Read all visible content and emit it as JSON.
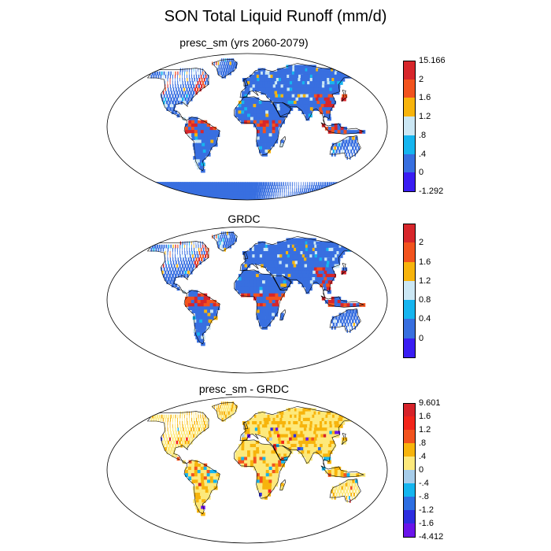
{
  "title": "SON Total Liquid Runoff (mm/d)",
  "colors": {
    "ocean": "#ffffff",
    "outline": "#000000"
  },
  "panels": [
    {
      "title": "presc_sm (yrs 2060-2079)",
      "colorbar": {
        "labels": [
          "15.166",
          "2",
          "1.6",
          "1.2",
          ".8",
          ".4",
          "0",
          "-1.292"
        ],
        "colors": [
          "#d7262b",
          "#f2531e",
          "#f7b40c",
          "#cbe7f4",
          "#16b5ef",
          "#386fe0",
          "#3a1df3"
        ]
      }
    },
    {
      "title": "GRDC",
      "colorbar": {
        "labels": [
          "",
          "2",
          "1.6",
          "1.2",
          "0.8",
          "0.4",
          "0",
          ""
        ],
        "colors": [
          "#d7262b",
          "#f2531e",
          "#f7b40c",
          "#cbe7f4",
          "#16b5ef",
          "#386fe0",
          "#3a1df3"
        ]
      }
    },
    {
      "title": "presc_sm - GRDC",
      "colorbar": {
        "labels": [
          "9.601",
          "1.6",
          "1.2",
          ".8",
          ".4",
          "0",
          "-.4",
          "-.8",
          "-1.2",
          "-1.6",
          "-4.412"
        ],
        "colors": [
          "#d6232a",
          "#f2251b",
          "#f2531e",
          "#f7b40c",
          "#fde97c",
          "#a7cdea",
          "#14b5ef",
          "#2d6ee2",
          "#2d2ee0",
          "#6a14ea"
        ]
      }
    }
  ]
}
